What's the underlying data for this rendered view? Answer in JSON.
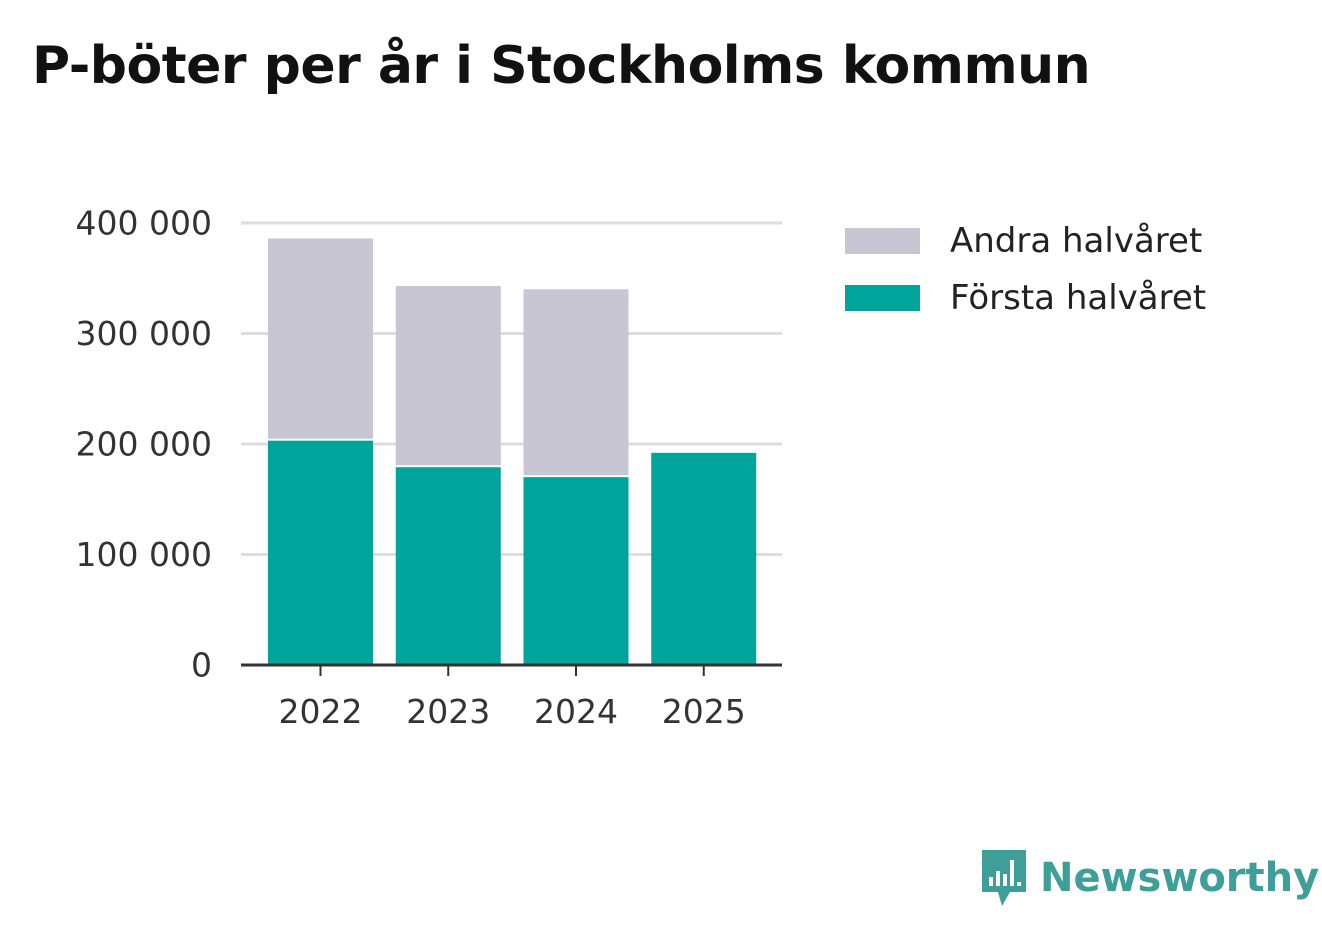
{
  "colors": {
    "first_half": "#00A49A",
    "second_half": "#C7C6D2",
    "brand": "#3E9E98",
    "grid": "#DDDDDD",
    "axis": "#333333"
  },
  "legend": [
    {
      "label": "Andra halvåret",
      "color": "#C7C6D2"
    },
    {
      "label": "Första halvåret",
      "color": "#00A49A"
    }
  ],
  "brand": {
    "name": "Newsworthy",
    "icon": "newsworthy-logo-icon"
  },
  "chart_data": {
    "type": "bar",
    "stacked": true,
    "title": "P-böter per år i Stockholms kommun",
    "categories": [
      "2022",
      "2023",
      "2024",
      "2025"
    ],
    "series": [
      {
        "name": "Första halvåret",
        "values": [
          203000,
          179000,
          170000,
          192000
        ]
      },
      {
        "name": "Andra halvåret",
        "values": [
          183000,
          164000,
          170000,
          0
        ]
      }
    ],
    "yticks": [
      0,
      100000,
      200000,
      300000,
      400000
    ],
    "ytick_labels": [
      "0",
      "100 000",
      "200 000",
      "300 000",
      "400 000"
    ],
    "ylim": [
      0,
      400000
    ],
    "xlabel": "",
    "ylabel": "",
    "grid": true,
    "legend_position": "top-right"
  }
}
